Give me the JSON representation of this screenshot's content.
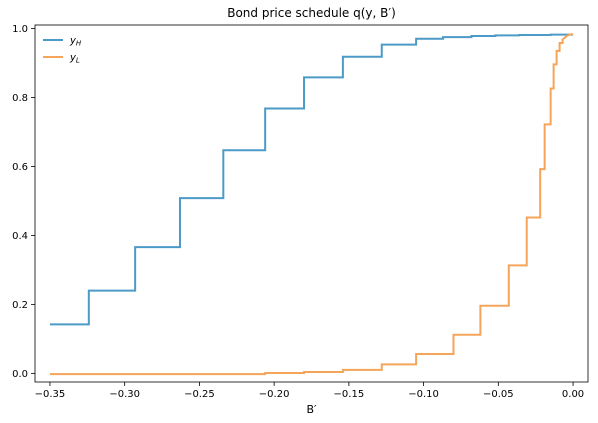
{
  "chart_data": {
    "type": "line",
    "title": "Bond price schedule q(y, B′)",
    "xlabel": "B′",
    "ylabel": "",
    "xlim": [
      -0.36,
      0.01
    ],
    "ylim": [
      -0.025,
      1.01
    ],
    "xticks": [
      -0.35,
      -0.3,
      -0.25,
      -0.2,
      -0.15,
      -0.1,
      -0.05,
      0.0
    ],
    "xtick_labels": [
      "−0.35",
      "−0.30",
      "−0.25",
      "−0.20",
      "−0.15",
      "−0.10",
      "−0.05",
      "0.00"
    ],
    "yticks": [
      0.0,
      0.2,
      0.4,
      0.6,
      0.8,
      1.0
    ],
    "ytick_labels": [
      "0.0",
      "0.2",
      "0.4",
      "0.6",
      "0.8",
      "1.0"
    ],
    "grid": false,
    "legend_position": "top-left",
    "series": [
      {
        "name": "y_H",
        "legend_main": "y",
        "legend_sub": "H",
        "color": "#4c9ac7",
        "x": [
          -0.35,
          -0.324,
          -0.324,
          -0.293,
          -0.293,
          -0.263,
          -0.263,
          -0.234,
          -0.234,
          -0.206,
          -0.206,
          -0.18,
          -0.18,
          -0.154,
          -0.154,
          -0.128,
          -0.128,
          -0.105,
          -0.105,
          -0.087,
          -0.087,
          -0.068,
          -0.068,
          -0.052,
          -0.052,
          -0.036,
          -0.036,
          -0.015,
          -0.015,
          0.0
        ],
        "y": [
          0.142,
          0.142,
          0.24,
          0.24,
          0.366,
          0.366,
          0.508,
          0.508,
          0.647,
          0.647,
          0.768,
          0.768,
          0.858,
          0.858,
          0.918,
          0.918,
          0.953,
          0.953,
          0.97,
          0.97,
          0.975,
          0.975,
          0.978,
          0.978,
          0.98,
          0.98,
          0.981,
          0.981,
          0.982,
          0.982
        ]
      },
      {
        "name": "y_L",
        "legend_main": "y",
        "legend_sub": "L",
        "color": "#f4a55a",
        "x": [
          -0.35,
          -0.206,
          -0.206,
          -0.18,
          -0.18,
          -0.154,
          -0.154,
          -0.128,
          -0.128,
          -0.105,
          -0.105,
          -0.08,
          -0.08,
          -0.062,
          -0.062,
          -0.043,
          -0.043,
          -0.031,
          -0.031,
          -0.027,
          -0.027,
          -0.022,
          -0.022,
          -0.019,
          -0.019,
          -0.015,
          -0.015,
          -0.013,
          -0.013,
          -0.011,
          -0.011,
          -0.009,
          -0.009,
          -0.007,
          -0.007,
          -0.005,
          -0.004,
          -0.003,
          -0.002,
          -0.001,
          0.0
        ],
        "y": [
          -0.002,
          -0.002,
          0.001,
          0.001,
          0.004,
          0.004,
          0.01,
          0.01,
          0.026,
          0.026,
          0.056,
          0.056,
          0.112,
          0.112,
          0.196,
          0.196,
          0.313,
          0.313,
          0.452,
          0.452,
          0.452,
          0.452,
          0.592,
          0.592,
          0.722,
          0.722,
          0.826,
          0.826,
          0.896,
          0.896,
          0.935,
          0.935,
          0.958,
          0.958,
          0.968,
          0.975,
          0.979,
          0.981,
          0.982,
          0.983,
          0.983
        ]
      }
    ]
  }
}
